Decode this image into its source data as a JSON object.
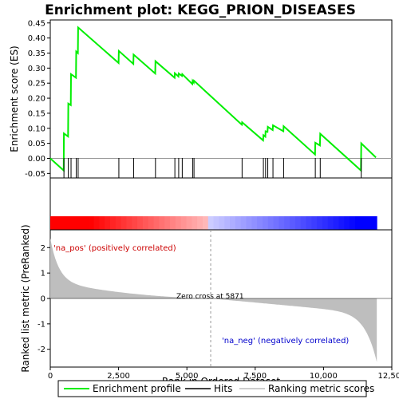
{
  "chart_data": {
    "type": "line",
    "title": "Enrichment plot: KEGG_PRION_DISEASES",
    "xlabel": "Rank in Ordered Dataset",
    "ylabel_top": "Enrichment score (ES)",
    "ylabel_bottom": "Ranked list metric (PreRanked)",
    "xlim": [
      0,
      12500
    ],
    "ylim_top": [
      -0.065,
      0.46
    ],
    "ylim_bottom": [
      -2.7,
      2.7
    ],
    "x_ticks": [
      "0",
      "2,500",
      "5,000",
      "7,500",
      "10,000",
      "12,500"
    ],
    "x_tick_values": [
      0,
      2500,
      5000,
      7500,
      10000,
      12500
    ],
    "y_ticks_top": [
      "-0.05",
      "0.00",
      "0.05",
      "0.10",
      "0.15",
      "0.20",
      "0.25",
      "0.30",
      "0.35",
      "0.40",
      "0.45"
    ],
    "y_tick_values_top": [
      -0.05,
      0,
      0.05,
      0.1,
      0.15,
      0.2,
      0.25,
      0.3,
      0.35,
      0.4,
      0.45
    ],
    "y_ticks_bottom": [
      "-2",
      "-1",
      "0",
      "1",
      "2"
    ],
    "y_tick_values_bottom": [
      -2,
      -1,
      0,
      1,
      2
    ],
    "hits": [
      500,
      660,
      760,
      950,
      1020,
      2510,
      3050,
      3850,
      4560,
      4700,
      4830,
      5210,
      5260,
      7020,
      7800,
      7880,
      7960,
      8150,
      8540,
      9700,
      9880,
      11380
    ],
    "es_points": [
      [
        0,
        0.0
      ],
      [
        490,
        -0.04
      ],
      [
        500,
        0.083
      ],
      [
        650,
        0.073
      ],
      [
        660,
        0.182
      ],
      [
        750,
        0.177
      ],
      [
        760,
        0.28
      ],
      [
        940,
        0.268
      ],
      [
        950,
        0.355
      ],
      [
        1010,
        0.35
      ],
      [
        1020,
        0.435
      ],
      [
        2500,
        0.317
      ],
      [
        2510,
        0.357
      ],
      [
        3040,
        0.314
      ],
      [
        3050,
        0.345
      ],
      [
        3840,
        0.282
      ],
      [
        3850,
        0.323
      ],
      [
        4550,
        0.268
      ],
      [
        4560,
        0.283
      ],
      [
        4690,
        0.272
      ],
      [
        4700,
        0.282
      ],
      [
        4820,
        0.274
      ],
      [
        4830,
        0.28
      ],
      [
        5200,
        0.247
      ],
      [
        5210,
        0.258
      ],
      [
        5250,
        0.252
      ],
      [
        5260,
        0.258
      ],
      [
        7010,
        0.112
      ],
      [
        7020,
        0.12
      ],
      [
        7790,
        0.06
      ],
      [
        7800,
        0.077
      ],
      [
        7870,
        0.072
      ],
      [
        7880,
        0.09
      ],
      [
        7950,
        0.088
      ],
      [
        7960,
        0.105
      ],
      [
        8140,
        0.094
      ],
      [
        8150,
        0.11
      ],
      [
        8530,
        0.09
      ],
      [
        8540,
        0.107
      ],
      [
        9690,
        0.013
      ],
      [
        9700,
        0.052
      ],
      [
        9870,
        0.043
      ],
      [
        9880,
        0.082
      ],
      [
        11370,
        -0.04
      ],
      [
        11380,
        0.05
      ],
      [
        11920,
        0.003
      ]
    ],
    "n_genes": 11950,
    "zero_cross": 5871,
    "annotation_zero": "Zero cross at 5871",
    "annotation_pos": "'na_pos' (positively correlated)",
    "annotation_neg": "'na_neg' (negatively correlated)",
    "legend": [
      "Enrichment profile",
      "Hits",
      "Ranking metric scores"
    ],
    "legend_placement": "bottom",
    "colors": {
      "es_line": "#00ee00",
      "hits": "#000000",
      "metric_fill": "#bebebe",
      "pos": "#ff0000",
      "neg": "#0000ff",
      "zero_line": "#999999"
    }
  }
}
